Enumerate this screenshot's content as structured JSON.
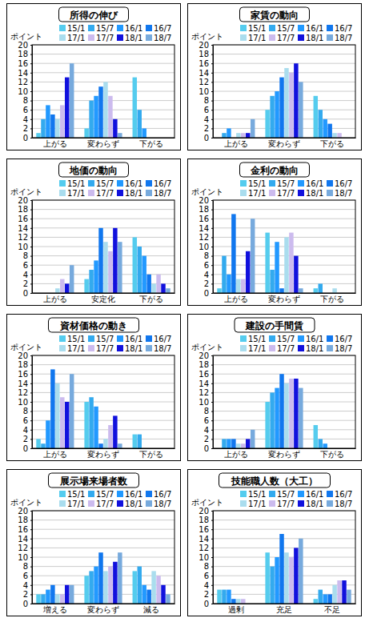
{
  "chart_data": [
    {
      "type": "bar",
      "title": "所得の伸び",
      "y_label": "ポイント",
      "categories": [
        "上がる",
        "変わらず",
        "下がる"
      ],
      "series": [
        {
          "name": "15/1",
          "color": "#55ccee",
          "values": [
            1,
            2,
            13
          ]
        },
        {
          "name": "15/7",
          "color": "#33aaee",
          "values": [
            4,
            8,
            6
          ]
        },
        {
          "name": "16/1",
          "color": "#2299ff",
          "values": [
            7,
            9,
            2
          ]
        },
        {
          "name": "16/7",
          "color": "#1177ee",
          "values": [
            5,
            11,
            0
          ]
        },
        {
          "name": "17/1",
          "color": "#aaddee",
          "values": [
            4,
            12,
            0
          ]
        },
        {
          "name": "17/7",
          "color": "#ccbbee",
          "values": [
            7,
            9,
            0
          ]
        },
        {
          "name": "18/1",
          "color": "#1111dd",
          "values": [
            13,
            4,
            0
          ]
        },
        {
          "name": "18/7",
          "color": "#77aadd",
          "values": [
            16,
            1,
            0
          ]
        }
      ],
      "ylim": [
        0,
        20
      ],
      "yticks": [
        0,
        2,
        4,
        6,
        8,
        10,
        12,
        14,
        16,
        18,
        20
      ],
      "grid": true,
      "legend": "top"
    },
    {
      "type": "bar",
      "title": "家賃の動向",
      "y_label": "ポイント",
      "categories": [
        "上がる",
        "変わらず",
        "下がる"
      ],
      "series": [
        {
          "name": "15/1",
          "color": "#55ccee",
          "values": [
            0,
            6,
            9
          ]
        },
        {
          "name": "15/7",
          "color": "#33aaee",
          "values": [
            1,
            9,
            6
          ]
        },
        {
          "name": "16/1",
          "color": "#2299ff",
          "values": [
            2,
            10,
            4
          ]
        },
        {
          "name": "16/7",
          "color": "#1177ee",
          "values": [
            0,
            13,
            3
          ]
        },
        {
          "name": "17/1",
          "color": "#aaddee",
          "values": [
            1,
            15,
            1
          ]
        },
        {
          "name": "17/7",
          "color": "#ccbbee",
          "values": [
            1,
            14,
            1
          ]
        },
        {
          "name": "18/1",
          "color": "#1111dd",
          "values": [
            1,
            16,
            0
          ]
        },
        {
          "name": "18/7",
          "color": "#77aadd",
          "values": [
            4,
            12,
            0
          ]
        }
      ],
      "ylim": [
        0,
        20
      ],
      "yticks": [
        0,
        2,
        4,
        6,
        8,
        10,
        12,
        14,
        16,
        18,
        20
      ],
      "grid": true,
      "legend": "top"
    },
    {
      "type": "bar",
      "title": "地価の動向",
      "y_label": "ポイント",
      "categories": [
        "上がる",
        "安定化",
        "下がる"
      ],
      "series": [
        {
          "name": "15/1",
          "color": "#55ccee",
          "values": [
            0,
            3,
            12
          ]
        },
        {
          "name": "15/7",
          "color": "#33aaee",
          "values": [
            0,
            5,
            10
          ]
        },
        {
          "name": "16/1",
          "color": "#2299ff",
          "values": [
            0,
            7,
            8
          ]
        },
        {
          "name": "16/7",
          "color": "#1177ee",
          "values": [
            0,
            14,
            4
          ]
        },
        {
          "name": "17/1",
          "color": "#aaddee",
          "values": [
            1,
            11,
            2
          ]
        },
        {
          "name": "17/7",
          "color": "#ccbbee",
          "values": [
            3,
            9,
            4
          ]
        },
        {
          "name": "18/1",
          "color": "#1111dd",
          "values": [
            2,
            14,
            2
          ]
        },
        {
          "name": "18/7",
          "color": "#77aadd",
          "values": [
            6,
            11,
            1
          ]
        }
      ],
      "ylim": [
        0,
        20
      ],
      "yticks": [
        0,
        2,
        4,
        6,
        8,
        10,
        12,
        14,
        16,
        18,
        20
      ],
      "grid": true,
      "legend": "top"
    },
    {
      "type": "bar",
      "title": "金利の動向",
      "y_label": "ポイント",
      "categories": [
        "上がる",
        "変わらず",
        "下がる"
      ],
      "series": [
        {
          "name": "15/1",
          "color": "#55ccee",
          "values": [
            1,
            13,
            1
          ]
        },
        {
          "name": "15/7",
          "color": "#33aaee",
          "values": [
            8,
            5,
            2
          ]
        },
        {
          "name": "16/1",
          "color": "#2299ff",
          "values": [
            4,
            11,
            0
          ]
        },
        {
          "name": "16/7",
          "color": "#1177ee",
          "values": [
            17,
            1,
            0
          ]
        },
        {
          "name": "17/1",
          "color": "#aaddee",
          "values": [
            3,
            12,
            1
          ]
        },
        {
          "name": "17/7",
          "color": "#ccbbee",
          "values": [
            3,
            13,
            0
          ]
        },
        {
          "name": "18/1",
          "color": "#1111dd",
          "values": [
            9,
            8,
            0
          ]
        },
        {
          "name": "18/7",
          "color": "#77aadd",
          "values": [
            16,
            1,
            0
          ]
        }
      ],
      "ylim": [
        0,
        20
      ],
      "yticks": [
        0,
        2,
        4,
        6,
        8,
        10,
        12,
        14,
        16,
        18,
        20
      ],
      "grid": true,
      "legend": "top"
    },
    {
      "type": "bar",
      "title": "資材価格の動き",
      "y_label": "ポイント",
      "categories": [
        "上がる",
        "変わらず",
        "下がる"
      ],
      "series": [
        {
          "name": "15/1",
          "color": "#55ccee",
          "values": [
            2,
            10,
            3
          ]
        },
        {
          "name": "15/7",
          "color": "#33aaee",
          "values": [
            1,
            11,
            3
          ]
        },
        {
          "name": "16/1",
          "color": "#2299ff",
          "values": [
            6,
            9,
            0
          ]
        },
        {
          "name": "16/7",
          "color": "#1177ee",
          "values": [
            17,
            1,
            0
          ]
        },
        {
          "name": "17/1",
          "color": "#aaddee",
          "values": [
            14,
            2,
            0
          ]
        },
        {
          "name": "17/7",
          "color": "#ccbbee",
          "values": [
            11,
            5,
            0
          ]
        },
        {
          "name": "18/1",
          "color": "#1111dd",
          "values": [
            10,
            7,
            0
          ]
        },
        {
          "name": "18/7",
          "color": "#77aadd",
          "values": [
            16,
            1,
            0
          ]
        }
      ],
      "ylim": [
        0,
        20
      ],
      "yticks": [
        0,
        2,
        4,
        6,
        8,
        10,
        12,
        14,
        16,
        18,
        20
      ],
      "grid": true,
      "legend": "top"
    },
    {
      "type": "bar",
      "title": "建設の手間賃",
      "y_label": "ポイント",
      "categories": [
        "上がる",
        "変わらず",
        "下がる"
      ],
      "series": [
        {
          "name": "15/1",
          "color": "#55ccee",
          "values": [
            0,
            10,
            5
          ]
        },
        {
          "name": "15/7",
          "color": "#33aaee",
          "values": [
            2,
            12,
            2
          ]
        },
        {
          "name": "16/1",
          "color": "#2299ff",
          "values": [
            2,
            13,
            1
          ]
        },
        {
          "name": "16/7",
          "color": "#1177ee",
          "values": [
            2,
            16,
            0
          ]
        },
        {
          "name": "17/1",
          "color": "#aaddee",
          "values": [
            1,
            14,
            0
          ]
        },
        {
          "name": "17/7",
          "color": "#ccbbee",
          "values": [
            1,
            15,
            0
          ]
        },
        {
          "name": "18/1",
          "color": "#1111dd",
          "values": [
            2,
            15,
            0
          ]
        },
        {
          "name": "18/7",
          "color": "#77aadd",
          "values": [
            4,
            13,
            0
          ]
        }
      ],
      "ylim": [
        0,
        20
      ],
      "yticks": [
        0,
        2,
        4,
        6,
        8,
        10,
        12,
        14,
        16,
        18,
        20
      ],
      "grid": true,
      "legend": "top"
    },
    {
      "type": "bar",
      "title": "展示場来場者数",
      "y_label": "ポイント",
      "categories": [
        "増える",
        "変わらず",
        "減る"
      ],
      "series": [
        {
          "name": "15/1",
          "color": "#55ccee",
          "values": [
            2,
            6,
            7
          ]
        },
        {
          "name": "15/7",
          "color": "#33aaee",
          "values": [
            2,
            7,
            8
          ]
        },
        {
          "name": "16/1",
          "color": "#2299ff",
          "values": [
            3,
            8,
            4
          ]
        },
        {
          "name": "16/7",
          "color": "#1177ee",
          "values": [
            4,
            11,
            3
          ]
        },
        {
          "name": "17/1",
          "color": "#aaddee",
          "values": [
            2,
            7,
            7
          ]
        },
        {
          "name": "17/7",
          "color": "#ccbbee",
          "values": [
            2,
            8,
            6
          ]
        },
        {
          "name": "18/1",
          "color": "#1111dd",
          "values": [
            4,
            9,
            4
          ]
        },
        {
          "name": "18/7",
          "color": "#77aadd",
          "values": [
            4,
            11,
            2
          ]
        }
      ],
      "ylim": [
        0,
        20
      ],
      "yticks": [
        0,
        2,
        4,
        6,
        8,
        10,
        12,
        14,
        16,
        18,
        20
      ],
      "grid": true,
      "legend": "top"
    },
    {
      "type": "bar",
      "title": "技能職人数（大工）",
      "y_label": "ポイント",
      "categories": [
        "過剰",
        "充足",
        "不足"
      ],
      "series": [
        {
          "name": "15/1",
          "color": "#55ccee",
          "values": [
            3,
            11,
            1
          ]
        },
        {
          "name": "15/7",
          "color": "#33aaee",
          "values": [
            3,
            8,
            3
          ]
        },
        {
          "name": "16/1",
          "color": "#2299ff",
          "values": [
            3,
            10,
            2
          ]
        },
        {
          "name": "16/7",
          "color": "#1177ee",
          "values": [
            1,
            15,
            2
          ]
        },
        {
          "name": "17/1",
          "color": "#aaddee",
          "values": [
            1,
            11,
            4
          ]
        },
        {
          "name": "17/7",
          "color": "#ccbbee",
          "values": [
            1,
            10,
            5
          ]
        },
        {
          "name": "18/1",
          "color": "#1111dd",
          "values": [
            0,
            12,
            5
          ]
        },
        {
          "name": "18/7",
          "color": "#77aadd",
          "values": [
            0,
            14,
            3
          ]
        }
      ],
      "ylim": [
        0,
        20
      ],
      "yticks": [
        0,
        2,
        4,
        6,
        8,
        10,
        12,
        14,
        16,
        18,
        20
      ],
      "grid": true,
      "legend": "top"
    }
  ]
}
